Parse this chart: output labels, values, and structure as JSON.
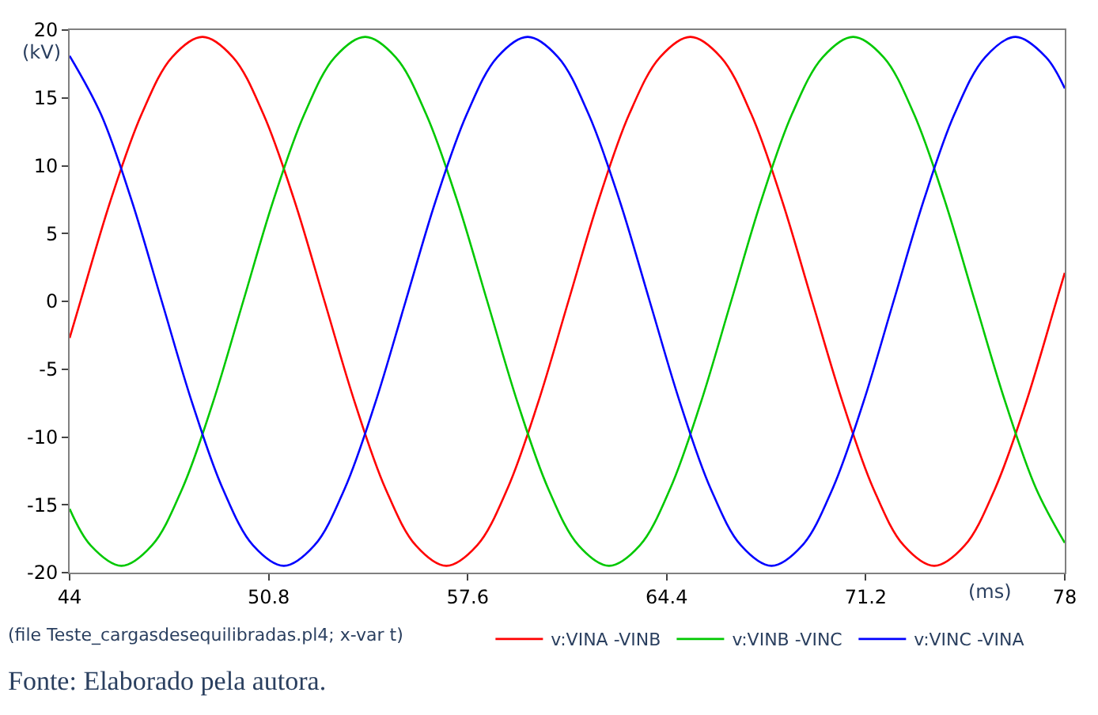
{
  "chart_data": {
    "type": "line",
    "xlabel": "(ms)",
    "ylabel": "(kV)",
    "xlim": [
      44,
      78
    ],
    "xticks": [
      44,
      50.8,
      57.6,
      64.4,
      71.2,
      78
    ],
    "ylim": [
      -20,
      20
    ],
    "yticks": [
      -20,
      -15,
      -10,
      -5,
      0,
      5,
      10,
      15,
      20
    ],
    "legend": "bottom",
    "line_style": "solid",
    "series": [
      {
        "name": "v:VINA -VINB",
        "color": "#ff0000",
        "x": [
          44,
          44.37,
          45.41,
          46.46,
          47.5,
          48.54,
          49.58,
          50.62,
          51.67,
          52.71,
          53.75,
          54.79,
          55.83,
          56.87,
          57.92,
          58.96,
          60.0,
          61.04,
          62.08,
          63.12,
          64.17,
          65.21,
          66.25,
          67.29,
          68.33,
          69.37,
          70.42,
          71.46,
          72.5,
          73.54,
          74.58,
          75.62,
          76.67,
          77.71,
          78
        ],
        "values": [
          -2.7,
          0,
          7.5,
          13.8,
          18.0,
          19.5,
          18.0,
          13.8,
          7.5,
          0,
          -7.5,
          -13.8,
          -18.0,
          -19.5,
          -18.0,
          -13.8,
          -7.5,
          0,
          7.5,
          13.8,
          18.0,
          19.5,
          18.0,
          13.8,
          7.5,
          0,
          -7.5,
          -13.8,
          -18.0,
          -19.5,
          -18.0,
          -13.8,
          -7.5,
          0,
          2.1
        ]
      },
      {
        "name": "v:VINB -VINC",
        "color": "#00c800",
        "x": [
          44,
          44.72,
          45.77,
          46.81,
          47.85,
          48.89,
          49.93,
          50.97,
          52.02,
          53.06,
          54.1,
          55.14,
          56.18,
          57.23,
          58.27,
          59.31,
          60.35,
          61.39,
          62.43,
          63.48,
          64.52,
          65.56,
          66.6,
          67.64,
          68.68,
          69.73,
          70.77,
          71.81,
          72.85,
          73.89,
          74.93,
          75.98,
          77.02,
          78
        ],
        "values": [
          -15.3,
          -18.0,
          -19.5,
          -18.0,
          -13.8,
          -7.5,
          0,
          7.5,
          13.8,
          18.0,
          19.5,
          18.0,
          13.8,
          7.5,
          0,
          -7.5,
          -13.8,
          -18.0,
          -19.5,
          -18.0,
          -13.8,
          -7.5,
          0,
          7.5,
          13.8,
          18.0,
          19.5,
          18.0,
          13.8,
          7.5,
          0,
          -7.5,
          -13.8,
          -17.8
        ]
      },
      {
        "name": "v:VINC -VINA",
        "color": "#0000ff",
        "x": [
          44,
          45.07,
          46.11,
          47.15,
          48.19,
          49.23,
          50.27,
          51.32,
          52.36,
          53.4,
          54.44,
          55.48,
          56.52,
          57.57,
          58.61,
          59.65,
          60.69,
          61.73,
          62.78,
          63.82,
          64.86,
          65.9,
          66.94,
          67.98,
          69.03,
          70.07,
          71.11,
          72.15,
          73.19,
          74.23,
          75.28,
          76.32,
          77.36,
          78
        ],
        "values": [
          18.1,
          13.8,
          7.5,
          0,
          -7.5,
          -13.8,
          -18.0,
          -19.5,
          -18.0,
          -13.8,
          -7.5,
          0,
          7.5,
          13.8,
          18.0,
          19.5,
          18.0,
          13.8,
          7.5,
          0,
          -7.5,
          -13.8,
          -18.0,
          -19.5,
          -18.0,
          -13.8,
          -7.5,
          0,
          7.5,
          13.8,
          18.0,
          19.5,
          18.0,
          15.7
        ]
      }
    ],
    "annotations": [
      "(file Teste_cargasdesequilibradas.pl4; x-var t)",
      "Fonte: Elaborado pela autora."
    ]
  }
}
